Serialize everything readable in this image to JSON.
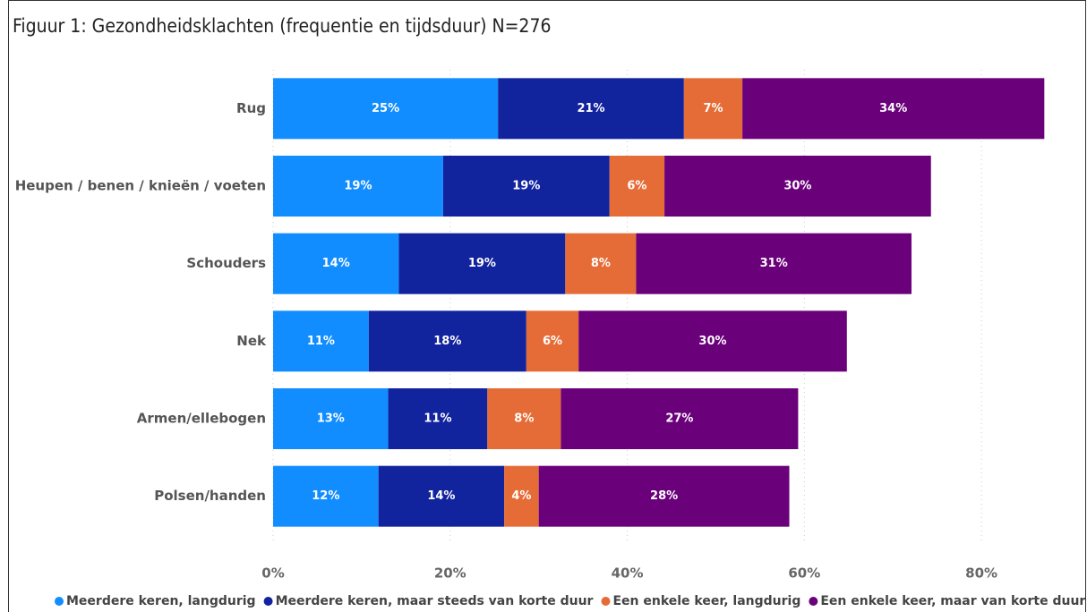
{
  "chart_data": {
    "type": "stacked_barh",
    "title": "Figuur 1: Gezondheidsklachten (frequentie en tijdsduur) N=276",
    "categories": [
      "Rug",
      "Heupen / benen / knieën / voeten",
      "Schouders",
      "Nek",
      "Armen/ellebogen",
      "Polsen/handen"
    ],
    "series": [
      {
        "name": "Meerdere keren, langdurig",
        "color": "#118dff",
        "values": [
          25.4,
          19.2,
          14.2,
          10.8,
          13.0,
          11.9
        ],
        "value_labels": [
          "25%",
          "19%",
          "14%",
          "11%",
          "13%",
          "12%"
        ]
      },
      {
        "name": "Meerdere keren, maar steeds van korte duur",
        "color": "#12239e",
        "values": [
          21.0,
          18.8,
          18.8,
          17.8,
          11.2,
          14.2
        ],
        "value_labels": [
          "21%",
          "19%",
          "19%",
          "18%",
          "11%",
          "14%"
        ]
      },
      {
        "name": "Een enkele keer, langdurig",
        "color": "#e66c37",
        "values": [
          6.6,
          6.2,
          8.0,
          5.9,
          8.3,
          3.9
        ],
        "value_labels": [
          "7%",
          "6%",
          "8%",
          "6%",
          "8%",
          "4%"
        ]
      },
      {
        "name": "Een enkele keer, maar van korte duur",
        "color": "#6b007b",
        "values": [
          34.1,
          30.1,
          31.1,
          30.3,
          26.8,
          28.3
        ],
        "value_labels": [
          "34%",
          "30%",
          "31%",
          "30%",
          "27%",
          "28%"
        ]
      }
    ],
    "xlim": [
      0,
      90
    ],
    "xticks": [
      {
        "value": 0,
        "label": "0%"
      },
      {
        "value": 20,
        "label": "20%"
      },
      {
        "value": 40,
        "label": "40%"
      },
      {
        "value": 60,
        "label": "60%"
      },
      {
        "value": 80,
        "label": "80%"
      }
    ],
    "grid": true,
    "legend": "bottom"
  }
}
